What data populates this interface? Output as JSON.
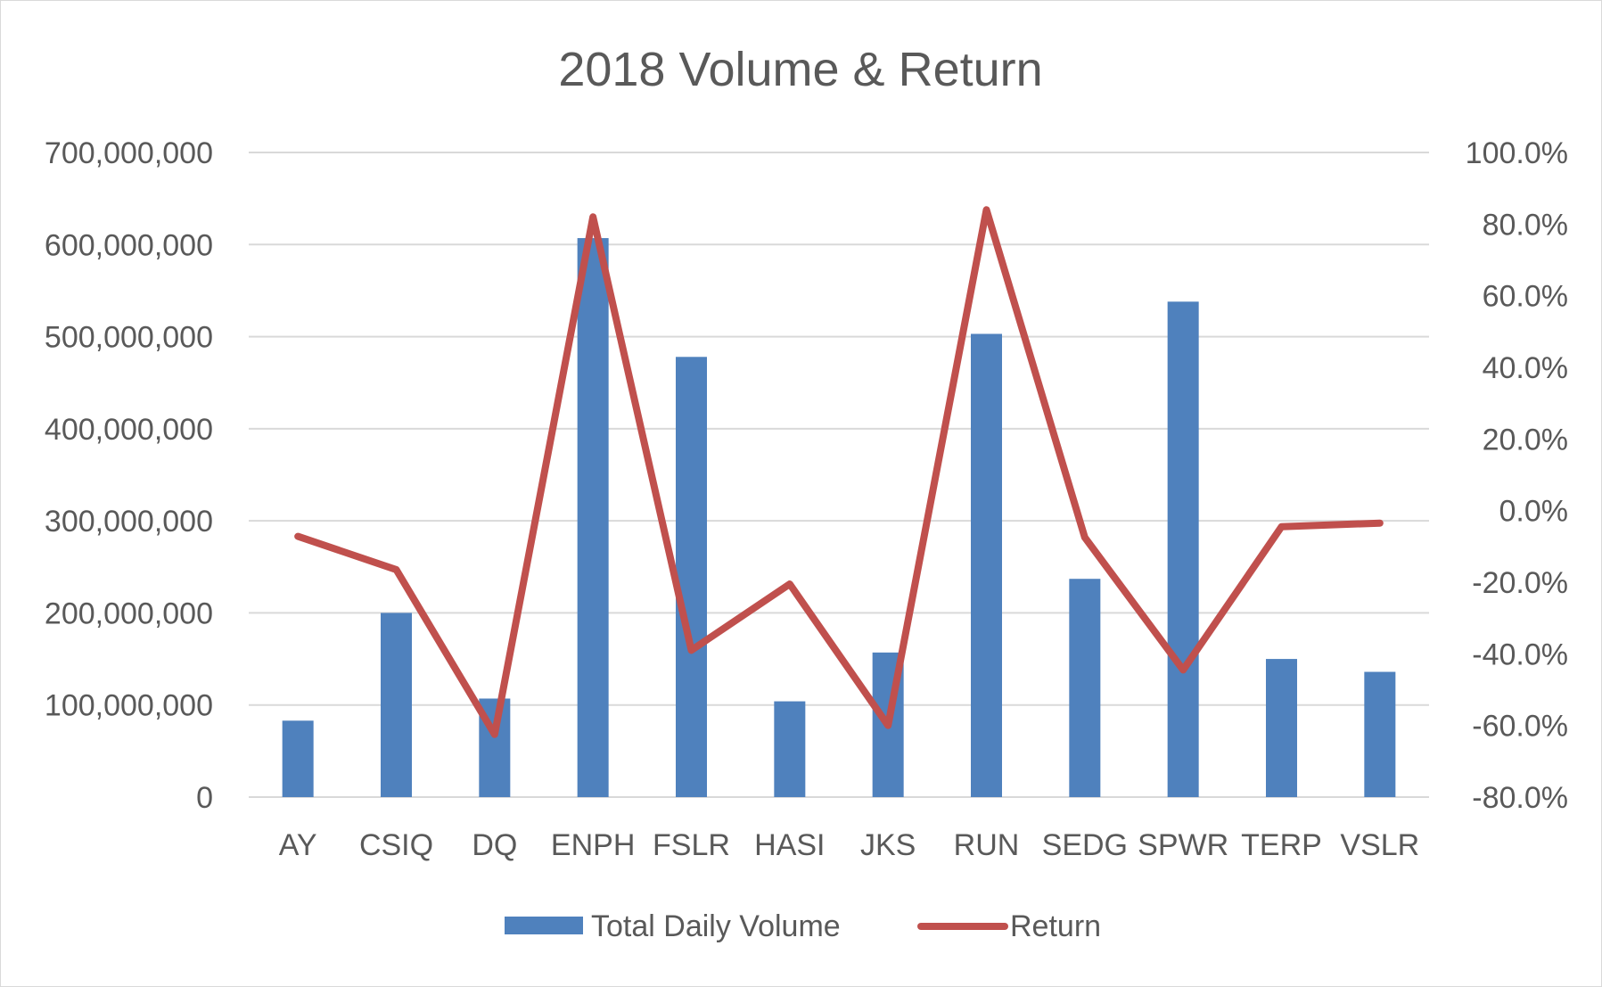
{
  "chart_data": {
    "type": "bar",
    "title": "2018 Volume & Return",
    "categories": [
      "AY",
      "CSIQ",
      "DQ",
      "ENPH",
      "FSLR",
      "HASI",
      "JKS",
      "RUN",
      "SEDG",
      "SPWR",
      "TERP",
      "VSLR"
    ],
    "series": [
      {
        "name": "Total Daily Volume",
        "type": "bar",
        "axis": "left",
        "color": "#4f81bd",
        "values": [
          83000000,
          200000000,
          107000000,
          607000000,
          478000000,
          104000000,
          157000000,
          503000000,
          237000000,
          538000000,
          150000000,
          136000000
        ]
      },
      {
        "name": "Return",
        "type": "line",
        "axis": "right",
        "color": "#c0504d",
        "values": [
          -7.2,
          -16.5,
          -62.5,
          82.0,
          -39.0,
          -20.5,
          -60.0,
          84.0,
          -7.5,
          -44.5,
          -4.5,
          -3.5
        ]
      }
    ],
    "left_axis": {
      "ylim": [
        0,
        700000000
      ],
      "ticks": [
        0,
        100000000,
        200000000,
        300000000,
        400000000,
        500000000,
        600000000,
        700000000
      ],
      "tick_labels": [
        "0",
        "100,000,000",
        "200,000,000",
        "300,000,000",
        "400,000,000",
        "500,000,000",
        "600,000,000",
        "700,000,000"
      ]
    },
    "right_axis": {
      "ylim": [
        -80,
        100
      ],
      "ticks": [
        -80,
        -60,
        -40,
        -20,
        0,
        20,
        40,
        60,
        80,
        100
      ],
      "tick_labels": [
        "-80.0%",
        "-60.0%",
        "-40.0%",
        "-20.0%",
        "0.0%",
        "20.0%",
        "40.0%",
        "60.0%",
        "80.0%",
        "100.0%"
      ]
    },
    "grid": true,
    "legend_position": "bottom"
  }
}
